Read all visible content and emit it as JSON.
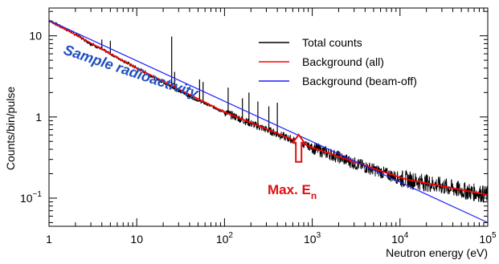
{
  "chart_data": {
    "type": "line",
    "xlabel": "Neutron energy (eV)",
    "ylabel": "Counts/bin/pulse",
    "xscale": "log",
    "yscale": "log",
    "xlim": [
      1,
      100000
    ],
    "ylim": [
      0.045,
      22
    ],
    "grid": false,
    "legend_position": "top-right",
    "x_ticks": [
      {
        "value": 1,
        "base": "1",
        "exp": ""
      },
      {
        "value": 10,
        "base": "10",
        "exp": ""
      },
      {
        "value": 100,
        "base": "10",
        "exp": "2"
      },
      {
        "value": 1000,
        "base": "10",
        "exp": "3"
      },
      {
        "value": 10000,
        "base": "10",
        "exp": "4"
      },
      {
        "value": 100000,
        "base": "10",
        "exp": "5"
      }
    ],
    "y_ticks": [
      {
        "value": 0.1,
        "base": "10",
        "exp": "−1"
      },
      {
        "value": 1,
        "base": "1",
        "exp": ""
      },
      {
        "value": 10,
        "base": "10",
        "exp": ""
      }
    ],
    "series": [
      {
        "name": "Total counts",
        "color": "#000000",
        "x": [
          1,
          2,
          3,
          5,
          10,
          20,
          30,
          50,
          100,
          200,
          300,
          500,
          1000,
          2000,
          3000,
          5000,
          10000,
          20000,
          50000,
          100000
        ],
        "y": [
          15.5,
          10.5,
          8.0,
          6.0,
          4.0,
          2.7,
          2.1,
          1.6,
          1.15,
          0.83,
          0.7,
          0.56,
          0.42,
          0.32,
          0.27,
          0.225,
          0.175,
          0.155,
          0.125,
          0.11
        ]
      },
      {
        "name": "Background (all)",
        "color": "#ff0000",
        "x": [
          1,
          10,
          100,
          1000,
          10000,
          12000,
          100000
        ],
        "y": [
          15.5,
          4.0,
          1.15,
          0.42,
          0.18,
          0.17,
          0.11
        ]
      },
      {
        "name": "Background (beam-off)",
        "color": "#1f1fff",
        "x": [
          1,
          100000
        ],
        "y": [
          15.5,
          0.05
        ]
      }
    ],
    "peaks": [
      {
        "x": 4.0,
        "y": 9.0
      },
      {
        "x": 5.0,
        "y": 8.7
      },
      {
        "x": 25.0,
        "y": 9.8
      },
      {
        "x": 27.0,
        "y": 3.6
      },
      {
        "x": 52.0,
        "y": 2.9
      },
      {
        "x": 57.0,
        "y": 2.7
      },
      {
        "x": 110.0,
        "y": 2.3
      },
      {
        "x": 160.0,
        "y": 1.7
      },
      {
        "x": 190.0,
        "y": 2.0
      },
      {
        "x": 240.0,
        "y": 1.55
      },
      {
        "x": 320.0,
        "y": 1.35
      },
      {
        "x": 400.0,
        "y": 1.5
      }
    ],
    "annotations": [
      {
        "id": "sample",
        "text": "Sample radioactivity",
        "color": "#1f4fbf"
      },
      {
        "id": "maxE",
        "text": "Max. E",
        "sub": "n",
        "color": "#e01010",
        "arrow_x": 700,
        "arrow_tip_y": 1.0
      }
    ]
  }
}
